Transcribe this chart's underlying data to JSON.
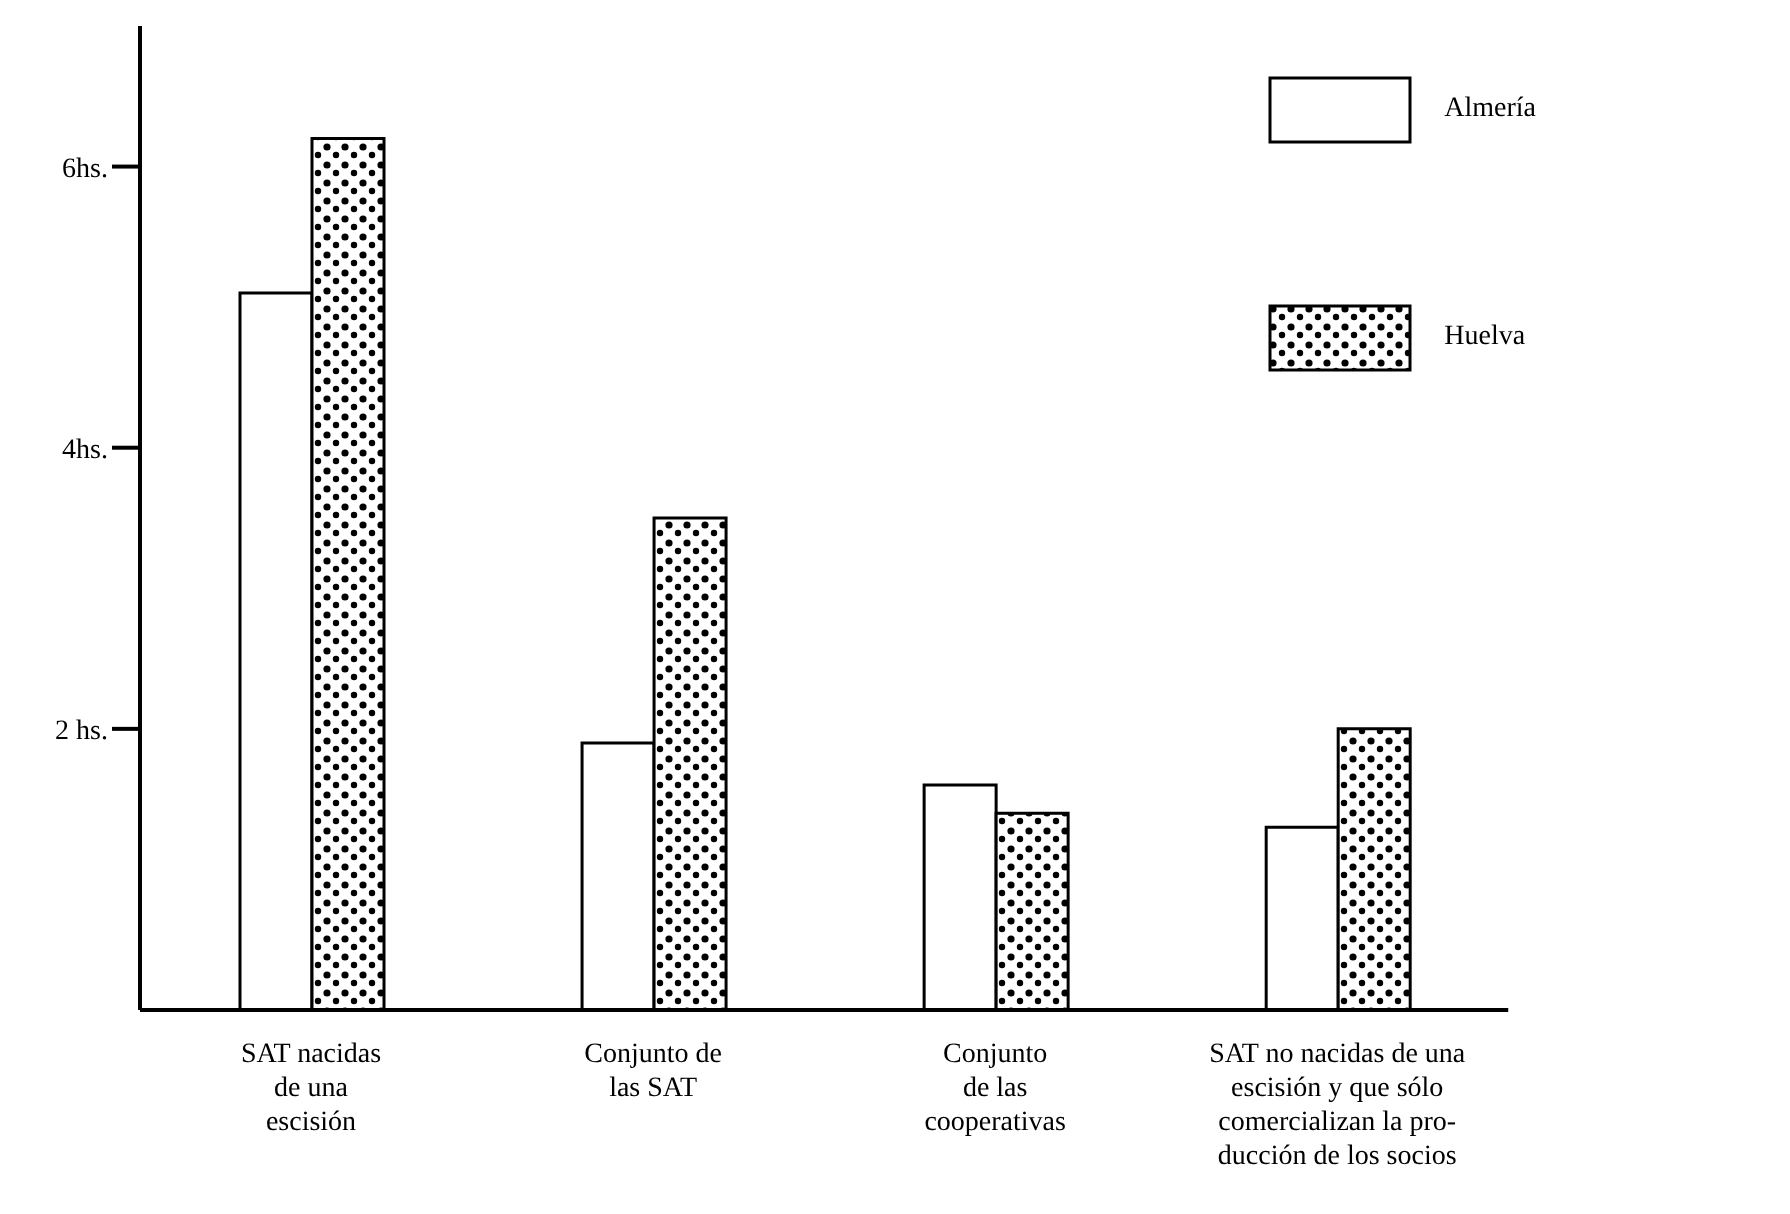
{
  "chart_data": {
    "type": "bar",
    "categories": [
      "SAT nacidas\nde una\nescisión",
      "Conjunto de\nlas SAT",
      "Conjunto\nde las\ncooperativas",
      "SAT no nacidas de una\nescisión y que sólo\ncomercializan la pro-\nducción de los socios"
    ],
    "series": [
      {
        "name": "Almería",
        "color": "#ffffff",
        "values": [
          5.1,
          1.9,
          1.6,
          1.3
        ]
      },
      {
        "name": "Huelva",
        "color": "#000000",
        "values": [
          6.2,
          3.5,
          1.4,
          2.0
        ]
      }
    ],
    "ylim": [
      0,
      7
    ],
    "yticks": [
      {
        "value": 2,
        "label": "2 hs."
      },
      {
        "value": 4,
        "label": "4hs."
      },
      {
        "value": 6,
        "label": "6hs."
      }
    ],
    "legend": "top right"
  }
}
